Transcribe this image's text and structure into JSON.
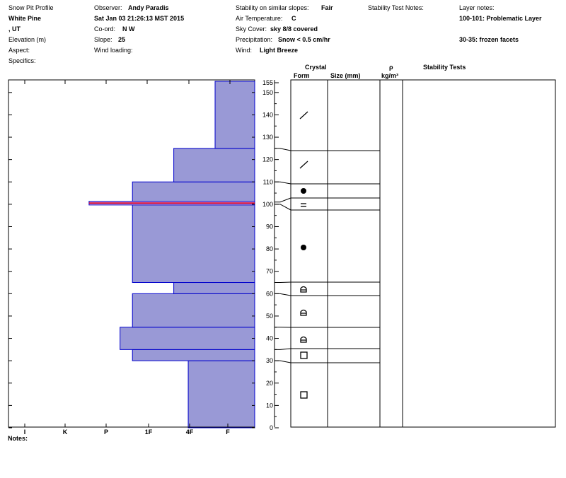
{
  "header": {
    "app_title": "Snow Pit Profile",
    "location": "White Pine",
    "region": ", UT",
    "elevation_label": "Elevation (m)",
    "aspect_label": "Aspect:",
    "specifics_label": "Specifics:",
    "observer_label": "Observer:",
    "observer_value": "Andy Paradis",
    "datetime": "Sat Jan 03 21:26:13 MST 2015",
    "coord_label": "Co-ord:",
    "coord_value": "N  W",
    "slope_label": "Slope:",
    "slope_value": "25",
    "wind_loading_label": "Wind loading:",
    "stability_label": "Stability on similar slopes:",
    "stability_value": "Fair",
    "air_temp_label": "Air Temperature:",
    "air_temp_value": "C",
    "sky_label": "Sky Cover:",
    "sky_value": "sky 8/8 covered",
    "precip_label": "Precipitation:",
    "precip_value": "Snow < 0.5 cm/hr",
    "wind_label": "Wind:",
    "wind_value": "Light Breeze",
    "stability_notes_label": "Stability Test Notes:",
    "layer_notes_label": "Layer notes:",
    "layer_note_1": "100-101: Problematic Layer",
    "layer_note_2": "30-35: frozen facets"
  },
  "table_headers": {
    "crystal": "Crystal",
    "form": "Form",
    "size": "Size (mm)",
    "rho": "ρ",
    "density_unit": "kg/m³",
    "stability_tests": "Stability Tests"
  },
  "notes_label": "Notes:",
  "colors": {
    "layer_fill": "#9999d6",
    "layer_stroke": "#0000cc",
    "problem_layer": "#cc0033",
    "grid": "#000000"
  },
  "chart_data": {
    "type": "bar",
    "orientation": "horizontal",
    "title": "",
    "xlabel": "",
    "ylabel": "",
    "hardness_ticks": [
      "I",
      "K",
      "P",
      "1F",
      "4F",
      "F"
    ],
    "hardness_scale_note": "hardness axis runs I (left, hardest) to F (right, softest)",
    "hardness_axis_range": [
      0,
      6
    ],
    "depth_ticks": [
      "0",
      "10",
      "20",
      "30",
      "40",
      "50",
      "60",
      "70",
      "80",
      "90",
      "100",
      "110",
      "120",
      "130",
      "140",
      "150",
      "155"
    ],
    "depth_range": [
      0,
      155
    ],
    "layers": [
      {
        "bottom": 0,
        "top": 30,
        "hardness": "4F+",
        "hardness_value": 4.35
      },
      {
        "bottom": 30,
        "top": 35,
        "hardness": "1F",
        "hardness_value": 3.0
      },
      {
        "bottom": 35,
        "top": 45,
        "hardness": "P+",
        "hardness_value": 2.7
      },
      {
        "bottom": 45,
        "top": 60,
        "hardness": "1F",
        "hardness_value": 3.0
      },
      {
        "bottom": 60,
        "top": 65,
        "hardness": "4F",
        "hardness_value": 4.0
      },
      {
        "bottom": 65,
        "top": 110,
        "hardness": "1F",
        "hardness_value": 3.0
      },
      {
        "bottom": 100,
        "top": 101,
        "hardness": "P-",
        "hardness_value": 1.95,
        "problematic": true
      },
      {
        "bottom": 110,
        "top": 125,
        "hardness": "4F",
        "hardness_value": 4.0
      },
      {
        "bottom": 125,
        "top": 155,
        "hardness": "F",
        "hardness_value": 5.0
      }
    ],
    "crystal_forms": [
      {
        "depth": 15,
        "symbol": "□"
      },
      {
        "depth": 32,
        "symbol": "□"
      },
      {
        "depth": 40,
        "symbol": "⍝"
      },
      {
        "depth": 51,
        "symbol": "⍝"
      },
      {
        "depth": 61,
        "symbol": "⍝"
      },
      {
        "depth": 81,
        "symbol": "●"
      },
      {
        "depth": 100,
        "symbol": "="
      },
      {
        "depth": 107,
        "symbol": "●"
      },
      {
        "depth": 118,
        "symbol": "/"
      },
      {
        "depth": 140,
        "symbol": "/"
      }
    ],
    "layer_boundaries": [
      30,
      35,
      45,
      60,
      65,
      100,
      101,
      110,
      125
    ]
  }
}
